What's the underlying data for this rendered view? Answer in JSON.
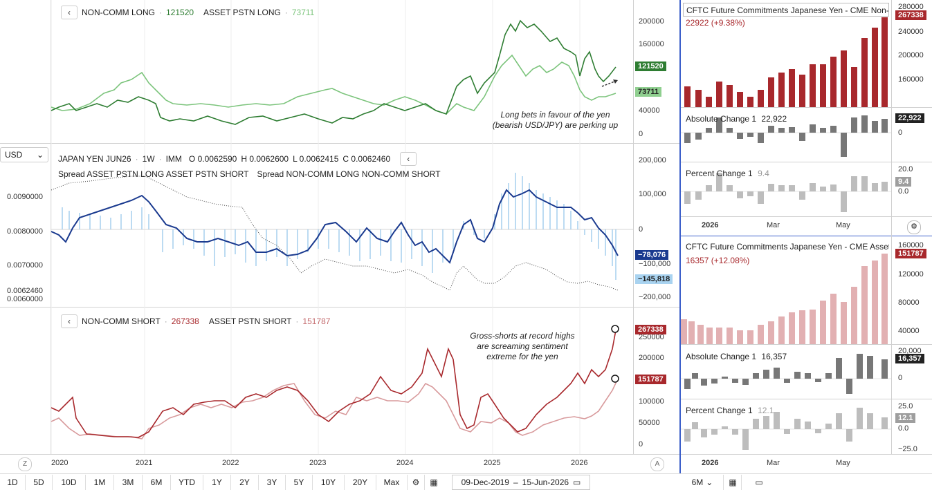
{
  "left_panel": {
    "top_legend": {
      "series1_label": "NON-COMM LONG",
      "series1_value": "121520",
      "series2_label": "ASSET PSTN LONG",
      "series2_value": "73711"
    },
    "top_axis": [
      "200000",
      "160000",
      "120000",
      "80000",
      "40000",
      "0"
    ],
    "top_tags": {
      "dark": "121520",
      "light": "73711"
    },
    "top_note": {
      "line1": "Long bets in favour of the yen",
      "line2": "(bearish USD/JPY) are perking up"
    },
    "currency_select": "USD",
    "mid_legend": {
      "symbol": "JAPAN YEN JUN26",
      "interval": "1W",
      "exchange": "IMM",
      "o_label": "O",
      "o": "0.0062590",
      "h_label": "H",
      "h": "0.0062600",
      "l_label": "L",
      "l": "0.0062415",
      "c_label": "C",
      "c": "0.0062460"
    },
    "mid_legend2": {
      "spread1": "Spread ASSET PSTN LONG ASSET PSTN SHORT",
      "spread2": "Spread NON-COMM LONG NON-COMM SHORT"
    },
    "mid_left_axis": [
      "0.0090000",
      "0.0080000",
      "0.0070000",
      "0.0062460",
      "0.0060000"
    ],
    "mid_right_axis": [
      "200,000",
      "100,000",
      "0",
      "−100,000",
      "−200,000"
    ],
    "mid_tags": {
      "dark": "−78,076",
      "light": "−145,818"
    },
    "bot_legend": {
      "series1_label": "NON-COMM SHORT",
      "series1_value": "267338",
      "series2_label": "ASSET PSTN SHORT",
      "series2_value": "151787"
    },
    "bot_axis": [
      "250000",
      "200000",
      "150000",
      "100000",
      "50000",
      "0"
    ],
    "bot_tags": {
      "dark": "267338",
      "light": "151787"
    },
    "bot_note": {
      "line1": "Gross-shorts at record highs",
      "line2": "are screaming sentiment",
      "line3": "extreme for the yen"
    },
    "x_axis": [
      "2020",
      "2021",
      "2022",
      "2023",
      "2024",
      "2025",
      "2026"
    ],
    "z_label": "Z",
    "a_label": "A"
  },
  "toolbar": {
    "ranges": [
      "1D",
      "5D",
      "10D",
      "1M",
      "3M",
      "6M",
      "YTD",
      "1Y",
      "2Y",
      "3Y",
      "5Y",
      "10Y",
      "20Y",
      "Max"
    ],
    "date_from": "09-Dec-2019",
    "date_sep": "–",
    "date_to": "15-Jun-2026",
    "right_range": "6M"
  },
  "right_panel": {
    "top_title": "CFTC Future Commitments Japanese Yen - CME Non-Commercial Short",
    "top_change": "22922 (+9.38%)",
    "top_tag": "267338",
    "top_axis": [
      "280000",
      "240000",
      "200000",
      "160000"
    ],
    "abs1_label": "Absolute Change 1",
    "abs1_value": "22,922",
    "abs1_tag": "22,922",
    "abs1_axis": "0",
    "pct1_label": "Percent Change 1",
    "pct1_value": "9.4",
    "pct1_tag": "9.4",
    "pct1_axis": [
      "20.0",
      "0.0"
    ],
    "x1": [
      "2026",
      "Mar",
      "May"
    ],
    "bot_title": "CFTC Future Commitments Japanese Yen - CME Asset Manager Short",
    "bot_change": "16357 (+12.08%)",
    "bot_tag": "151787",
    "bot_axis": [
      "160000",
      "120000",
      "80000",
      "40000"
    ],
    "abs2_label": "Absolute Change 1",
    "abs2_value": "16,357",
    "abs2_tag": "16,357",
    "abs2_axis": [
      "20,000",
      "0"
    ],
    "pct2_label": "Percent Change 1",
    "pct2_value": "12.1",
    "pct2_tag": "12.1",
    "pct2_axis": [
      "25.0",
      "0.0",
      "−25.0"
    ],
    "x2": [
      "2026",
      "Mar",
      "May"
    ]
  },
  "colors": {
    "dark_green": "#2e7d32",
    "light_green": "#7cc47c",
    "navy": "#1a3a8f",
    "light_blue": "#8fc3e8",
    "dark_red": "#a8282c",
    "light_red": "#d89a9c",
    "gray_bar": "#777777",
    "light_gray_bar": "#bdbdbd"
  }
}
